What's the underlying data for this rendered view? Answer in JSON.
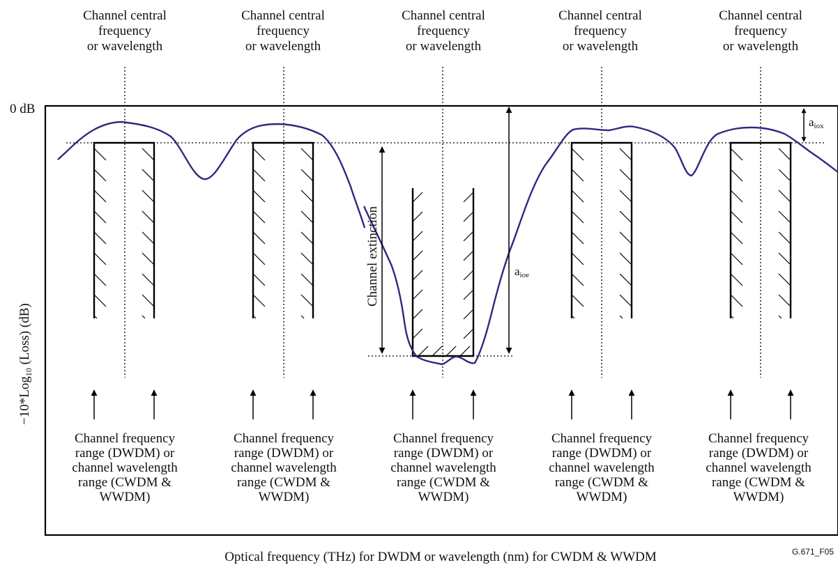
{
  "diagram": {
    "top_label_line1": "Channel central",
    "top_label_line2": "frequency",
    "top_label_line3": "or wavelength",
    "zero_db_label": "0 dB",
    "y_axis_label_prefix": "−10*Log",
    "y_axis_label_sub": "10",
    "y_axis_label_suffix": " (Loss) (dB)",
    "bottom_label_line1": "Channel frequency",
    "bottom_label_line2": "range (DWDM) or",
    "bottom_label_line3": "channel wavelength",
    "bottom_label_line4": "range (CWDM &",
    "bottom_label_line5": "WWDM)",
    "channel_extinction_label": "Channel extinction",
    "aiox_base": "a",
    "aiox_sub": "iox",
    "aioe_base": "a",
    "aioe_sub": "ioe",
    "x_axis_label": "Optical frequency (THz) for DWDM or wavelength (nm) for CWDM & WWDM",
    "figure_id": "G.671_F05",
    "curve_color": "#2c2a80",
    "channel_count": 5
  }
}
